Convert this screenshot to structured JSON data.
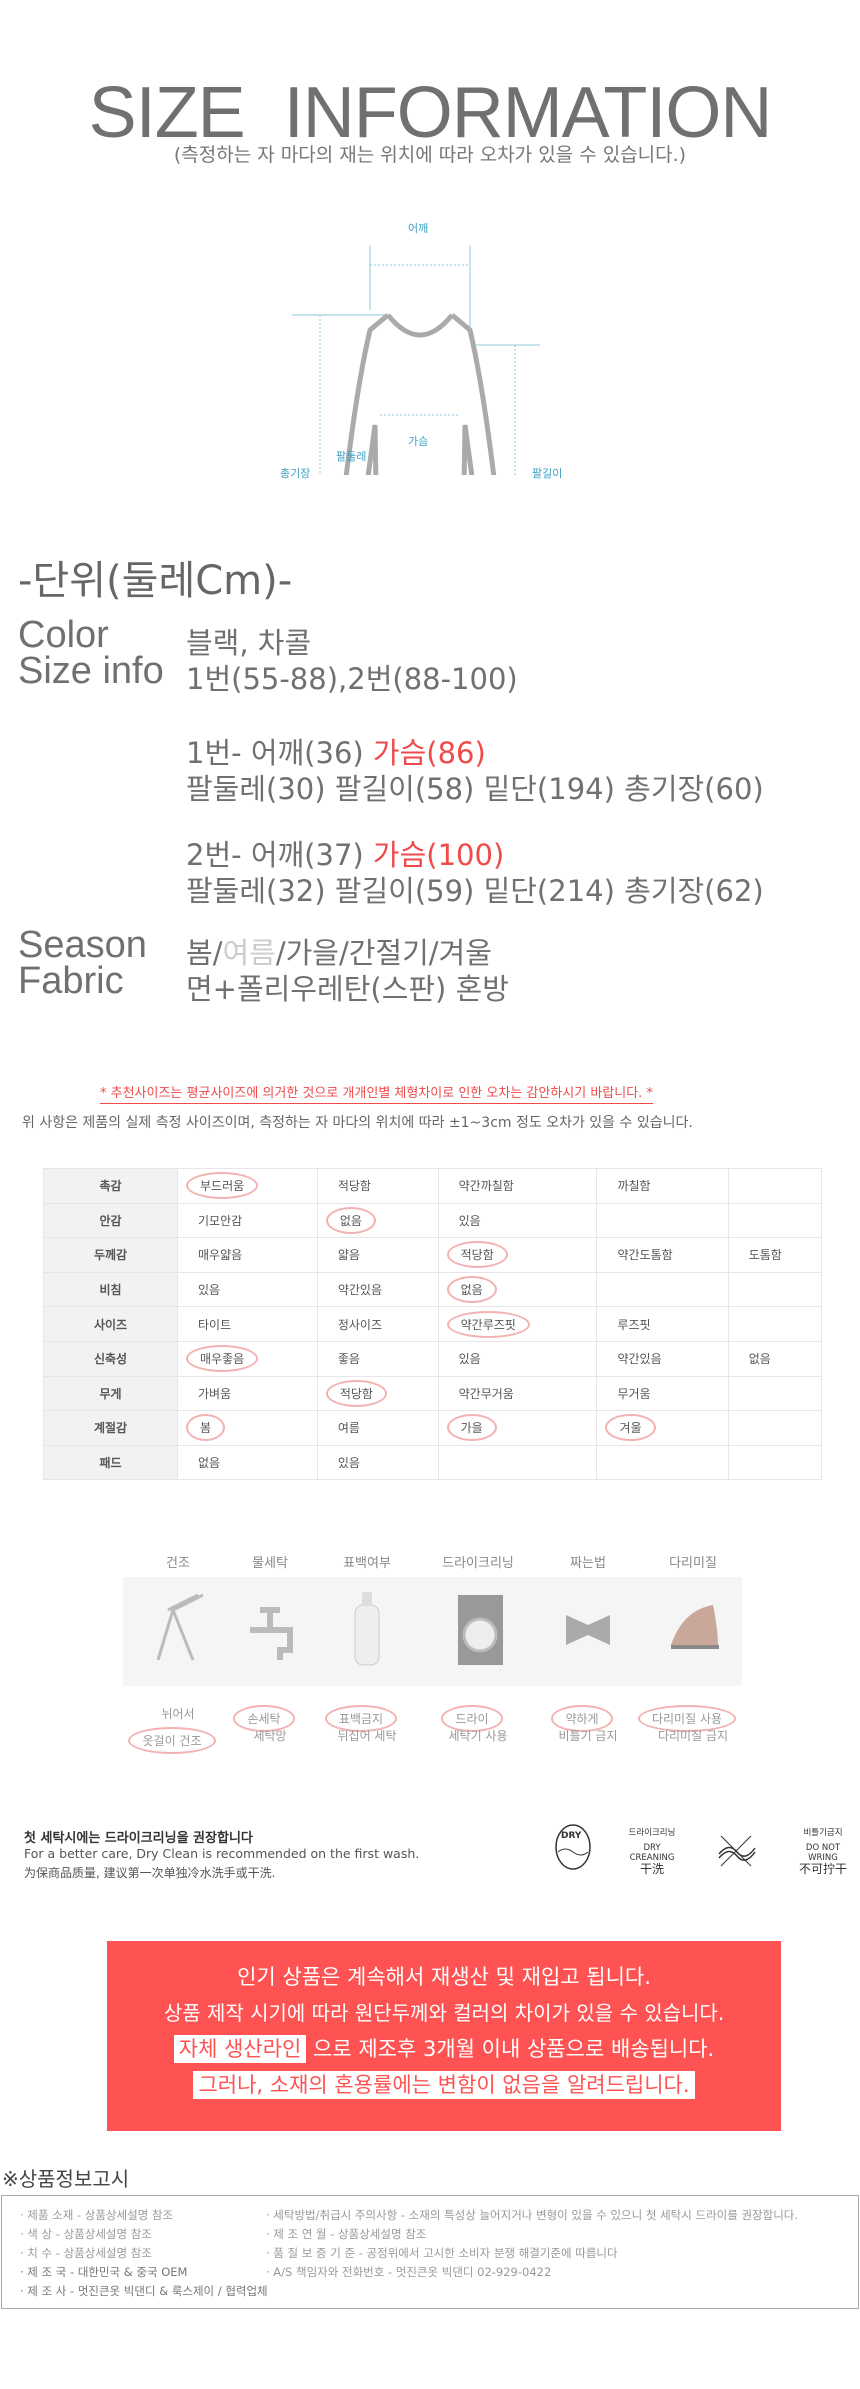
{
  "header": {
    "title": "SIZE  INFORMATION",
    "subtitle": "(측정하는 자 마다의  재는 위치에 따라 오차가 있을 수 있습니다.)"
  },
  "diagram": {
    "labels": {
      "shoulder": "어깨",
      "chest": "가슴",
      "arm_round": "팔둘레",
      "total_length": "총기장",
      "sleeve": "팔길이"
    }
  },
  "unit": "-단위(둘레Cm)-",
  "specs": {
    "color_label": "Color",
    "color_value": "블랙, 차콜",
    "size_label": "Size info",
    "size_value": "1번(55-88),2번(88-100)",
    "size1": {
      "prefix": "1번- 어깨(36)",
      "chest": "가슴(86)",
      "line2": "팔둘레(30) 팔길이(58) 밑단(194) 총기장(60)"
    },
    "size2": {
      "prefix": "2번- 어깨(37)",
      "chest": "가슴(100)",
      "line2": "팔둘레(32) 팔길이(59) 밑단(214) 총기장(62)"
    },
    "season_label": "Season",
    "season": [
      "봄",
      "/",
      "여름",
      "/가을/간절기/겨울"
    ],
    "fabric_label": "Fabric",
    "fabric_value": "면+폴리우레탄(스판) 혼방"
  },
  "notes": {
    "red": "* 추천사이즈는 평균사이즈에 의거한 것으로 개개인별 체형차이로 인한 오차는 감안하시기 바랍니다. *",
    "gray": "위 사항은 제품의 실제 측정 사이즈이며, 측정하는 자 마다의 위치에 따라 ±1~3cm 정도 오차가 있을 수 있습니다."
  },
  "attributes": [
    {
      "name": "촉감",
      "options": [
        "부드러움",
        "적당함",
        "약간까칠함",
        "까칠함",
        ""
      ],
      "selected": [
        0
      ]
    },
    {
      "name": "안감",
      "options": [
        "기모안감",
        "없음",
        "있음",
        "",
        ""
      ],
      "selected": [
        1
      ]
    },
    {
      "name": "두께감",
      "options": [
        "매우얇음",
        "얇음",
        "적당함",
        "약간도톰함",
        "도톰함"
      ],
      "selected": [
        2
      ]
    },
    {
      "name": "비침",
      "options": [
        "있음",
        "약간있음",
        "없음",
        "",
        ""
      ],
      "selected": [
        2
      ]
    },
    {
      "name": "사이즈",
      "options": [
        "타이트",
        "정사이즈",
        "약간루즈핏",
        "루즈핏",
        ""
      ],
      "selected": [
        2
      ]
    },
    {
      "name": "신축성",
      "options": [
        "매우좋음",
        "좋음",
        "있음",
        "약간있음",
        "없음"
      ],
      "selected": [
        0
      ]
    },
    {
      "name": "무게",
      "options": [
        "가벼움",
        "적당함",
        "약간무거움",
        "무거움",
        ""
      ],
      "selected": [
        1
      ]
    },
    {
      "name": "계절감",
      "options": [
        "봄",
        "여름",
        "가을",
        "겨울",
        ""
      ],
      "selected": [
        0,
        2,
        3
      ]
    },
    {
      "name": "패드",
      "options": [
        "없음",
        "있음",
        "",
        "",
        ""
      ],
      "selected": []
    }
  ],
  "care": [
    {
      "title": "건조",
      "icon": "drying-rack-icon",
      "line1": "뉘어서",
      "line2": "옷걸이 건조",
      "circled": 2
    },
    {
      "title": "물세탁",
      "icon": "faucet-icon",
      "line1": "손세탁",
      "line2": "세탁망",
      "circled": 1
    },
    {
      "title": "표백여부",
      "icon": "bleach-bottle-icon",
      "line1": "표백금지",
      "line2": "뒤집어 세탁",
      "circled": 1
    },
    {
      "title": "드라이크리닝",
      "icon": "washing-machine-icon",
      "line1": "드라이",
      "line2": "세탁기 사용",
      "circled": 1
    },
    {
      "title": "짜는법",
      "icon": "twist-icon",
      "line1": "약하게",
      "line2": "비틀기 금지",
      "circled": 1
    },
    {
      "title": "다리미질",
      "icon": "iron-icon",
      "line1": "다리미질 사용",
      "line2": "다리미질 금지",
      "circled": 1
    }
  ],
  "dry_note": {
    "title": "첫 세탁시에는 드라이크리닝을 권장합니다",
    "en": "For a better care, Dry Clean is recommended on the first wash.",
    "cn": "为保商品质量, 建议第一次单独冷水洗手或干洗.",
    "symbols": {
      "dry_badge": "DRY",
      "dry_kr": "드라이크리닝",
      "dry_en": "DRY CREANING",
      "dry_cn": "干洗",
      "wring_kr": "비틀기금지",
      "wring_en": "DO NOT WRING",
      "wring_cn": "不可拧干"
    }
  },
  "promo": {
    "line1": "인기 상품은 계속해서 재생산 및 재입고 됩니다.",
    "line2": "상품 제작 시기에 따라 원단두께와 컬러의 차이가 있을 수 있습니다.",
    "line3_hl": "자체 생산라인",
    "line3_rest": " 으로 제조후 3개월 이내 상품으로 배송됩니다.",
    "line4": "그러나, 소재의 혼용률에는 변함이 없음을 알려드립니다.",
    "color": "#ff5252"
  },
  "notice": {
    "heading": "※상품정보고시",
    "rows": [
      [
        "· 제품  소재  - 상품상세설명 참조",
        "· 세탁방법/취급시 주의사항 - 소재의 특성상 늘어지거나 변형이 있을 수 있으니 첫 세탁시 드라이를 권장합니다."
      ],
      [
        "· 색          상 - 상품상세설명 참조",
        "· 제        조        연        월 - 상품상세설명 참조"
      ],
      [
        "· 치          수 - 상품상세설명 참조",
        "· 품    질    보    증    기    준 - 공정위에서 고시한 소비자 분쟁 해결기준에 따릅니다"
      ],
      [
        "· 제    조    국 - 대한민국 & 중국 OEM",
        "· A/S 책임자와 전화번호 - 멋진큰옷 빅댄디 02-929-0422"
      ],
      [
        "· 제    조    사 - 멋진큰옷 빅댄디 & 룩스제이 / 협력업체",
        ""
      ]
    ]
  }
}
